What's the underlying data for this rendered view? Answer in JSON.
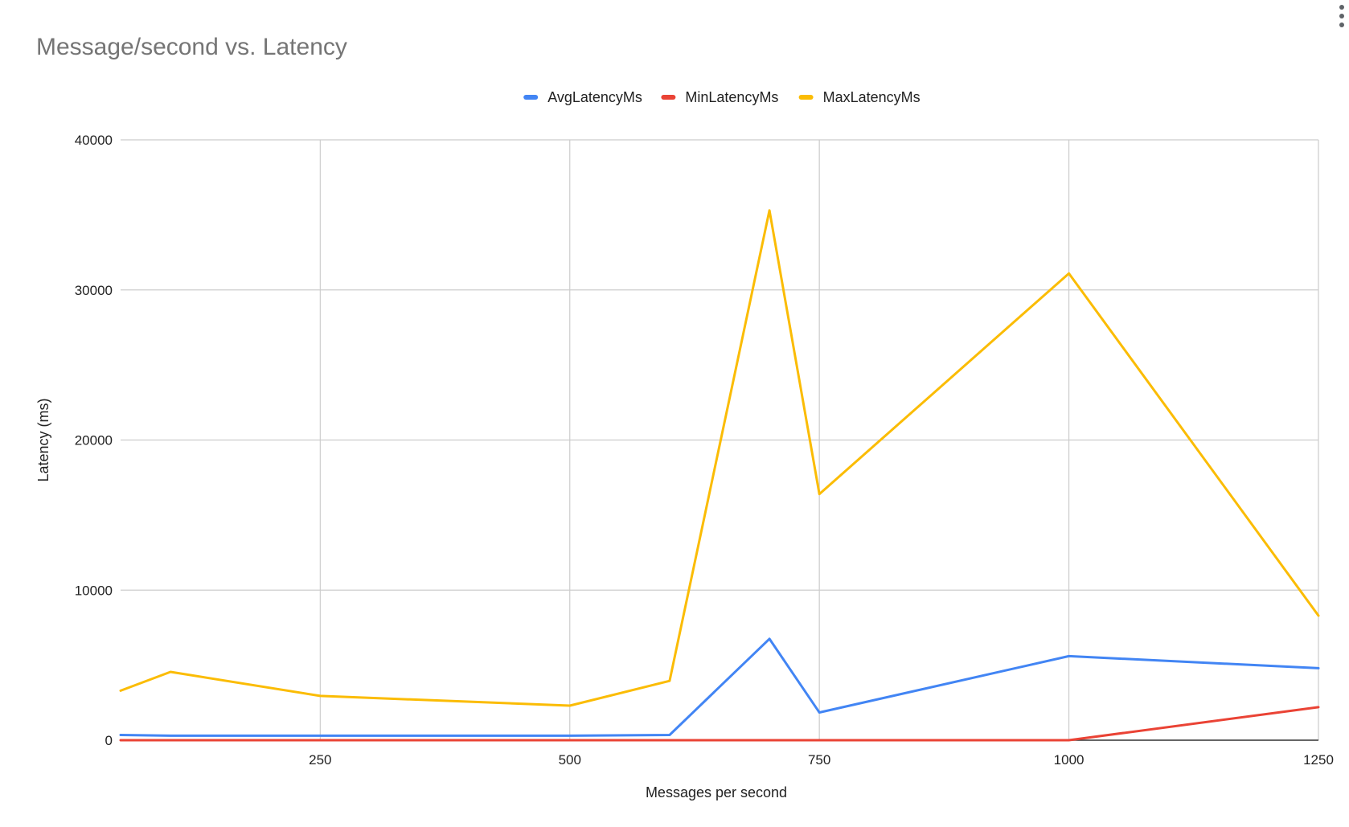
{
  "chart_data": {
    "type": "line",
    "title": "Message/second vs. Latency",
    "xlabel": "Messages per second",
    "ylabel": "Latency (ms)",
    "xlim": [
      50,
      1250
    ],
    "ylim": [
      0,
      40000
    ],
    "x_ticks": [
      250,
      500,
      750,
      1000,
      1250
    ],
    "y_ticks": [
      0,
      10000,
      20000,
      30000,
      40000
    ],
    "grid": true,
    "legend_position": "top",
    "x": [
      50,
      100,
      250,
      500,
      600,
      700,
      750,
      1000,
      1250
    ],
    "series": [
      {
        "name": "AvgLatencyMs",
        "color": "#4285F4",
        "values": [
          350,
          300,
          300,
          300,
          350,
          6750,
          1850,
          5600,
          4800
        ]
      },
      {
        "name": "MinLatencyMs",
        "color": "#EA4335",
        "values": [
          0,
          0,
          0,
          0,
          0,
          0,
          0,
          0,
          2200
        ]
      },
      {
        "name": "MaxLatencyMs",
        "color": "#FBBC04",
        "values": [
          3300,
          4550,
          2950,
          2300,
          3950,
          35300,
          16400,
          31100,
          8300
        ]
      }
    ]
  },
  "ui": {
    "menu_icon": "more-vert-icon",
    "gridline_color": "#cccccc",
    "axis_color": "#333333"
  }
}
